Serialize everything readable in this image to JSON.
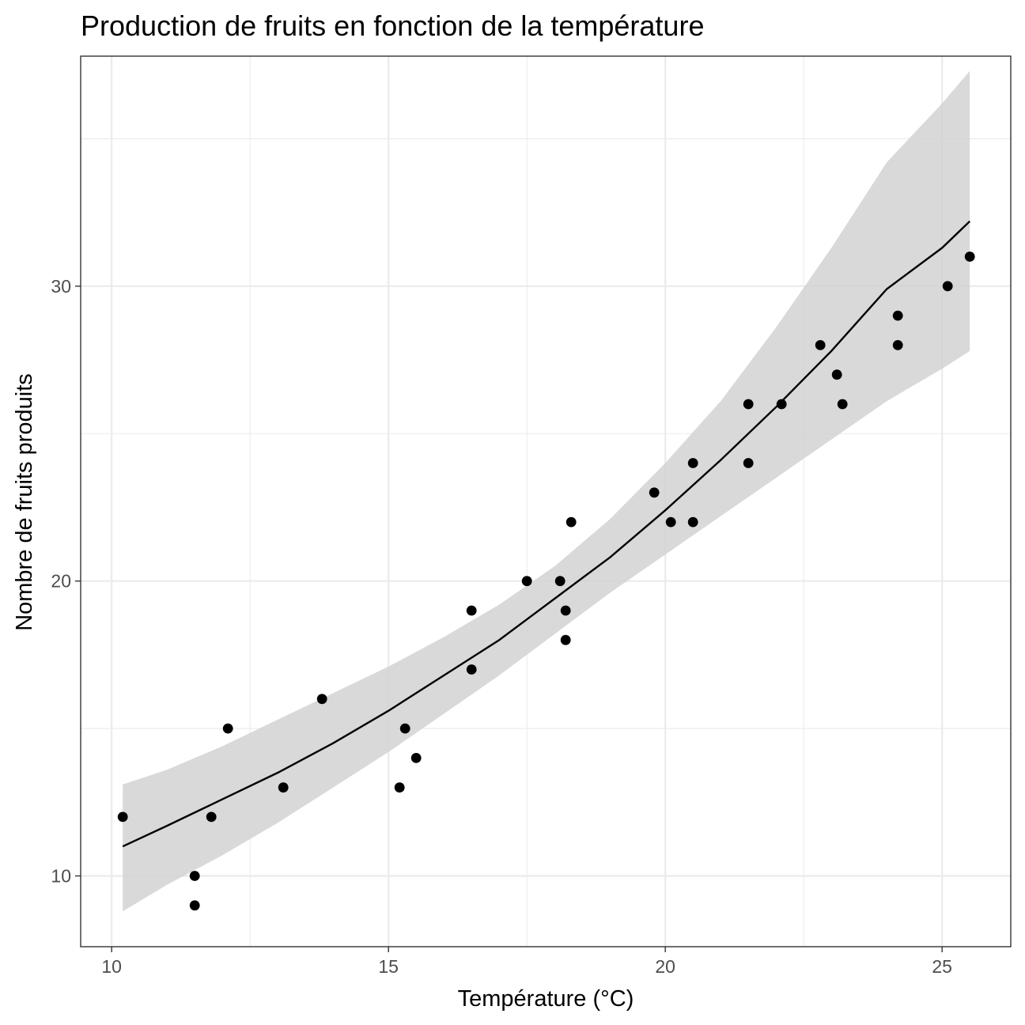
{
  "chart_data": {
    "type": "scatter",
    "title": "Production de fruits en fonction de la température",
    "xlabel": "Température (°C)",
    "ylabel": "Nombre de fruits produits",
    "xlim": [
      9.44,
      26.24
    ],
    "ylim": [
      7.6,
      37.8
    ],
    "x_ticks": [
      10,
      15,
      20,
      25
    ],
    "y_ticks": [
      10,
      20,
      30
    ],
    "grid": true,
    "legend": "none",
    "points": [
      {
        "x": 10.2,
        "y": 12
      },
      {
        "x": 11.5,
        "y": 10
      },
      {
        "x": 11.5,
        "y": 9
      },
      {
        "x": 11.8,
        "y": 12
      },
      {
        "x": 12.1,
        "y": 15
      },
      {
        "x": 13.1,
        "y": 13
      },
      {
        "x": 13.8,
        "y": 16
      },
      {
        "x": 15.2,
        "y": 13
      },
      {
        "x": 15.3,
        "y": 15
      },
      {
        "x": 15.5,
        "y": 14
      },
      {
        "x": 16.5,
        "y": 17
      },
      {
        "x": 16.5,
        "y": 19
      },
      {
        "x": 17.5,
        "y": 20
      },
      {
        "x": 18.1,
        "y": 20
      },
      {
        "x": 18.2,
        "y": 19
      },
      {
        "x": 18.2,
        "y": 18
      },
      {
        "x": 18.3,
        "y": 22
      },
      {
        "x": 19.8,
        "y": 23
      },
      {
        "x": 20.1,
        "y": 22
      },
      {
        "x": 20.5,
        "y": 24
      },
      {
        "x": 20.5,
        "y": 22
      },
      {
        "x": 21.5,
        "y": 26
      },
      {
        "x": 21.5,
        "y": 24
      },
      {
        "x": 22.1,
        "y": 26
      },
      {
        "x": 22.8,
        "y": 28
      },
      {
        "x": 23.1,
        "y": 27
      },
      {
        "x": 23.2,
        "y": 26
      },
      {
        "x": 24.2,
        "y": 29
      },
      {
        "x": 24.2,
        "y": 28
      },
      {
        "x": 25.1,
        "y": 30
      },
      {
        "x": 25.5,
        "y": 31
      }
    ],
    "fit": {
      "x": [
        10.2,
        11,
        12,
        13,
        14,
        15,
        16,
        17,
        18,
        19,
        20,
        21,
        22,
        23,
        24,
        25,
        25.5
      ],
      "y": [
        11.0,
        11.7,
        12.6,
        13.5,
        14.5,
        15.6,
        16.8,
        18.0,
        19.4,
        20.8,
        22.4,
        24.1,
        25.9,
        27.8,
        29.9,
        31.3,
        32.2
      ],
      "lower": [
        8.8,
        9.7,
        10.7,
        11.8,
        13.0,
        14.2,
        15.5,
        16.8,
        18.2,
        19.6,
        20.9,
        22.2,
        23.5,
        24.8,
        26.1,
        27.2,
        27.8
      ],
      "upper": [
        13.1,
        13.6,
        14.4,
        15.3,
        16.2,
        17.1,
        18.1,
        19.2,
        20.5,
        22.1,
        24.0,
        26.1,
        28.6,
        31.3,
        34.2,
        36.2,
        37.3
      ]
    }
  }
}
